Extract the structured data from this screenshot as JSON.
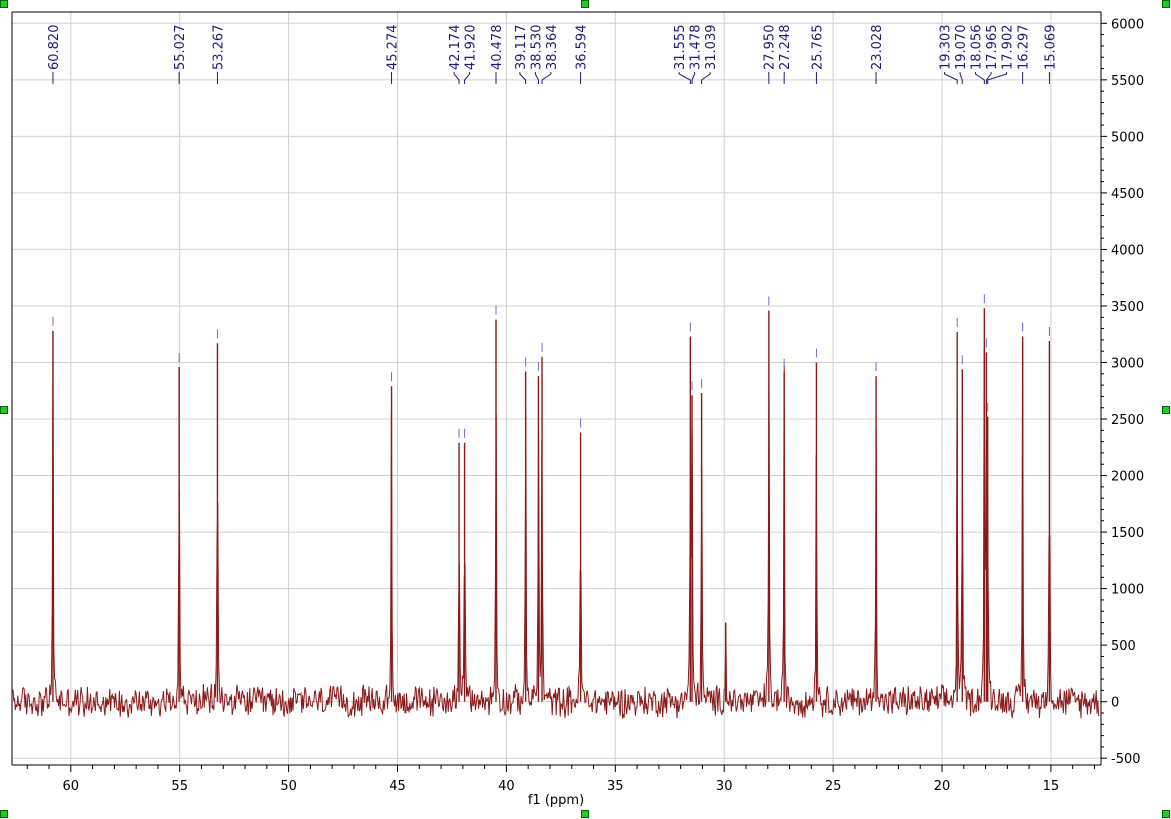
{
  "colors": {
    "spectrum": "#8b1a1a",
    "peak_label": "#1c1c78",
    "grid": "#d0d0d0",
    "axis": "#000000",
    "handle_fill": "#22cc22",
    "handle_stroke": "#006600"
  },
  "chart_data": {
    "type": "line",
    "title": "",
    "xlabel": "f1 (ppm)",
    "ylabel": "",
    "x_reversed": true,
    "xlim": [
      62.7,
      12.7
    ],
    "ylim": [
      -560,
      6100
    ],
    "x_ticks": [
      "60",
      "55",
      "50",
      "45",
      "40",
      "35",
      "30",
      "25",
      "20",
      "15"
    ],
    "y_ticks": [
      "6000",
      "5500",
      "5000",
      "4500",
      "4000",
      "3500",
      "3000",
      "2500",
      "2000",
      "1500",
      "1000",
      "500",
      "0",
      "-500"
    ],
    "grid": true,
    "noise_amplitude": 160,
    "series": [
      {
        "peaks": [
          {
            "ppm": 60.82,
            "label": "60.820",
            "height": 3280
          },
          {
            "ppm": 55.027,
            "label": "55.027",
            "height": 2960
          },
          {
            "ppm": 53.267,
            "label": "53.267",
            "height": 3170
          },
          {
            "ppm": 45.274,
            "label": "45.274",
            "height": 2790
          },
          {
            "ppm": 42.174,
            "label": "42.174",
            "height": 2290
          },
          {
            "ppm": 41.92,
            "label": "41.920",
            "height": 2290
          },
          {
            "ppm": 40.478,
            "label": "40.478",
            "height": 3380
          },
          {
            "ppm": 39.117,
            "label": "39.117",
            "height": 2920
          },
          {
            "ppm": 38.53,
            "label": "38.530",
            "height": 2880
          },
          {
            "ppm": 38.364,
            "label": "38.364",
            "height": 3050
          },
          {
            "ppm": 36.594,
            "label": "36.594",
            "height": 2380
          },
          {
            "ppm": 31.555,
            "label": "31.555",
            "height": 3230
          },
          {
            "ppm": 31.478,
            "label": "31.478",
            "height": 2710
          },
          {
            "ppm": 31.039,
            "label": "31.039",
            "height": 2730
          },
          {
            "ppm": 27.95,
            "label": "27.950",
            "height": 3460
          },
          {
            "ppm": 27.248,
            "label": "27.248",
            "height": 2910
          },
          {
            "ppm": 25.765,
            "label": "25.765",
            "height": 3000
          },
          {
            "ppm": 23.028,
            "label": "23.028",
            "height": 2880
          },
          {
            "ppm": 19.303,
            "label": "19.303",
            "height": 3270
          },
          {
            "ppm": 19.07,
            "label": "19.070",
            "height": 2940
          },
          {
            "ppm": 18.056,
            "label": "18.056",
            "height": 3480
          },
          {
            "ppm": 17.965,
            "label": "17.965",
            "height": 3090
          },
          {
            "ppm": 17.902,
            "label": "17.902",
            "height": 2520
          },
          {
            "ppm": 16.297,
            "label": "16.297",
            "height": 3230
          },
          {
            "ppm": 15.069,
            "label": "15.069",
            "height": 3190
          }
        ],
        "unlabeled_peaks": [
          {
            "ppm": 29.93,
            "height": 700
          }
        ]
      }
    ]
  }
}
